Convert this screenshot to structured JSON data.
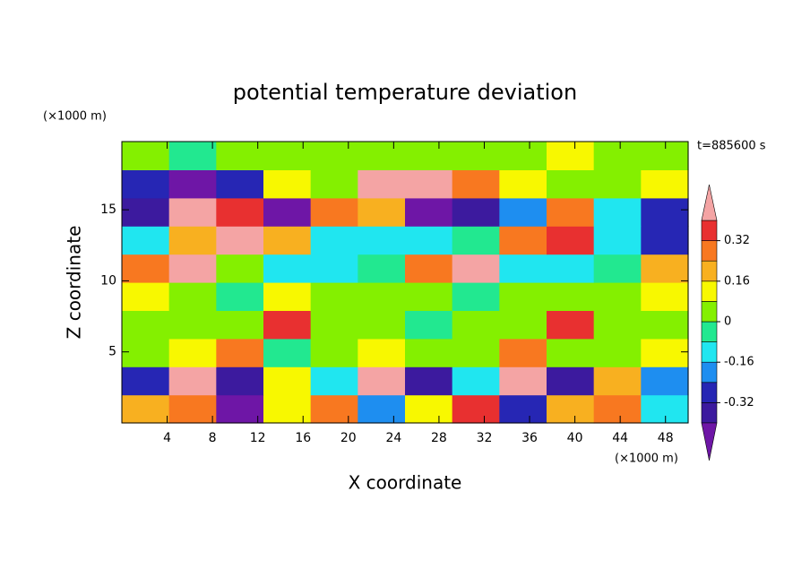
{
  "chart_data": {
    "type": "contour",
    "title": "potential temperature deviation",
    "x_label": "X coordinate",
    "y_label": "Z coordinate",
    "x_unit": "(×1000 m)",
    "y_unit": "(×1000 m)",
    "time_label": "t=885600 s",
    "xlim": [
      0,
      50
    ],
    "xticks": [
      4,
      8,
      12,
      16,
      20,
      24,
      28,
      32,
      36,
      40,
      44,
      48
    ],
    "ylim": [
      0,
      19.8
    ],
    "yticks": [
      5,
      10,
      15
    ],
    "levels": [
      -0.4,
      -0.32,
      -0.24,
      -0.16,
      -0.08,
      0,
      0.08,
      0.16,
      0.24,
      0.32,
      0.4
    ],
    "colors": [
      "#6e16a6",
      "#3c1a9e",
      "#2626b4",
      "#1e8ef0",
      "#20e6f0",
      "#22e890",
      "#84f000",
      "#f8f800",
      "#f8b020",
      "#f87820",
      "#e83030",
      "#f4a4a4"
    ],
    "colorbar_ticks": [
      -0.32,
      -0.16,
      0,
      0.16,
      0.32
    ],
    "z": [
      [
        0.2,
        0.3,
        -0.45,
        0.1,
        0.25,
        -0.2,
        0.1,
        0.35,
        -0.3,
        0.2,
        0.3,
        -0.1
      ],
      [
        -0.3,
        0.45,
        -0.4,
        0.1,
        -0.1,
        0.45,
        -0.35,
        -0.1,
        0.45,
        -0.4,
        0.2,
        -0.2
      ],
      [
        0.05,
        0.1,
        0.3,
        -0.05,
        0,
        0.1,
        0.05,
        0,
        0.3,
        0,
        0.05,
        0.1
      ],
      [
        0.02,
        0.05,
        0.05,
        0.35,
        0.02,
        0,
        -0.02,
        0,
        0.02,
        0.35,
        0.05,
        0.02
      ],
      [
        0.1,
        0.05,
        -0.05,
        0.1,
        0.02,
        0,
        0,
        -0.02,
        0,
        0.02,
        0.05,
        0.1
      ],
      [
        0.3,
        0.45,
        0.05,
        -0.1,
        -0.12,
        -0.05,
        0.3,
        0.45,
        -0.1,
        -0.1,
        -0.05,
        0.2
      ],
      [
        -0.1,
        0.2,
        0.45,
        0.2,
        -0.1,
        -0.15,
        -0.1,
        -0.05,
        0.3,
        0.35,
        -0.15,
        -0.3
      ],
      [
        -0.35,
        0.45,
        0.35,
        -0.45,
        0.3,
        0.2,
        -0.45,
        -0.4,
        -0.2,
        0.3,
        -0.1,
        -0.3
      ],
      [
        -0.3,
        -0.45,
        -0.3,
        0.1,
        0.05,
        0.45,
        0.45,
        0.3,
        0.1,
        0.02,
        0.05,
        0.1
      ],
      [
        0.02,
        -0.05,
        0.05,
        0.05,
        0.05,
        0,
        0.02,
        0.05,
        0.05,
        0.08,
        0.05,
        0.02
      ]
    ]
  }
}
